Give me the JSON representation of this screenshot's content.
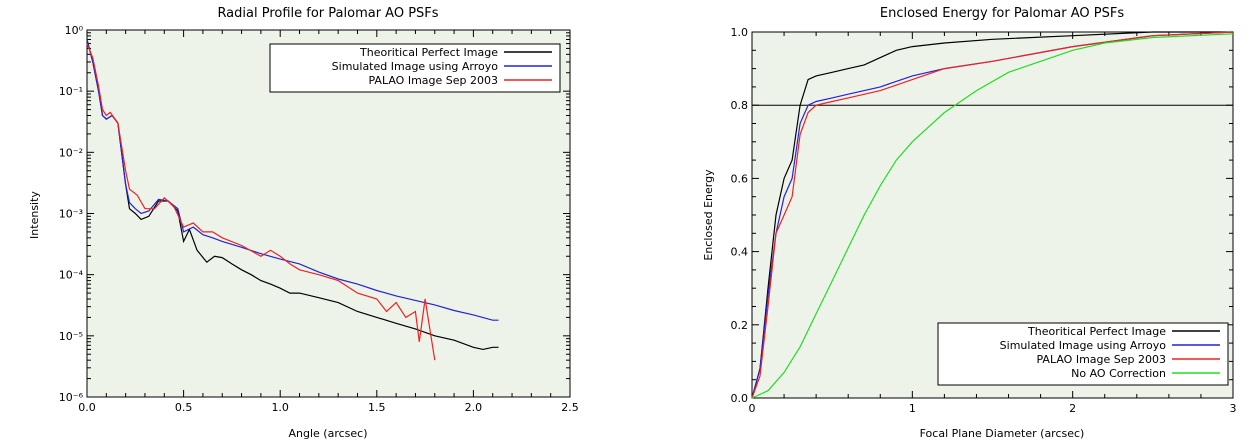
{
  "chart_data": [
    {
      "type": "line",
      "title": "Radial Profile for Palomar AO PSFs",
      "xlabel": "Angle (arcsec)",
      "ylabel": "Intensity",
      "xlim": [
        0,
        2.5
      ],
      "ylim": [
        1e-06,
        1
      ],
      "yscale": "log",
      "grid": false,
      "legend_position": "top-right",
      "xticks": [
        "0.0",
        "0.5",
        "1.0",
        "1.5",
        "2.0",
        "2.5"
      ],
      "yticks": [
        "10⁻⁶",
        "10⁻⁵",
        "10⁻⁴",
        "10⁻³",
        "10⁻²",
        "10⁻¹",
        "10⁰"
      ],
      "series": [
        {
          "name": "Theoritical Perfect Image",
          "color": "#000000",
          "x": [
            0,
            0.03,
            0.06,
            0.08,
            0.1,
            0.13,
            0.16,
            0.2,
            0.22,
            0.25,
            0.28,
            0.32,
            0.37,
            0.42,
            0.47,
            0.5,
            0.53,
            0.57,
            0.62,
            0.66,
            0.7,
            0.75,
            0.8,
            0.85,
            0.9,
            0.95,
            1.0,
            1.05,
            1.1,
            1.2,
            1.3,
            1.4,
            1.5,
            1.6,
            1.7,
            1.8,
            1.9,
            2.0,
            2.05,
            2.1,
            2.13
          ],
          "y": [
            0.7,
            0.3,
            0.1,
            0.04,
            0.035,
            0.04,
            0.03,
            0.003,
            0.0012,
            0.001,
            0.0008,
            0.0009,
            0.0016,
            0.0016,
            0.0011,
            0.00035,
            0.00055,
            0.00025,
            0.00016,
            0.0002,
            0.00019,
            0.00015,
            0.00012,
            0.0001,
            8e-05,
            7e-05,
            6e-05,
            5e-05,
            5e-05,
            4.2e-05,
            3.5e-05,
            2.5e-05,
            2e-05,
            1.6e-05,
            1.3e-05,
            1e-05,
            8.5e-06,
            6.5e-06,
            6e-06,
            6.5e-06,
            6.5e-06
          ]
        },
        {
          "name": "Simulated Image using Arroyo",
          "color": "#2222dd",
          "x": [
            0,
            0.03,
            0.06,
            0.08,
            0.1,
            0.13,
            0.16,
            0.2,
            0.22,
            0.25,
            0.28,
            0.32,
            0.37,
            0.42,
            0.47,
            0.5,
            0.55,
            0.6,
            0.65,
            0.7,
            0.8,
            0.9,
            1.0,
            1.1,
            1.2,
            1.3,
            1.4,
            1.5,
            1.6,
            1.7,
            1.8,
            1.9,
            2.0,
            2.1,
            2.13
          ],
          "y": [
            0.7,
            0.3,
            0.1,
            0.04,
            0.035,
            0.04,
            0.03,
            0.003,
            0.0015,
            0.0012,
            0.001,
            0.0011,
            0.0017,
            0.0016,
            0.0012,
            0.0005,
            0.0006,
            0.00045,
            0.0004,
            0.00035,
            0.00028,
            0.00022,
            0.00018,
            0.00015,
            0.00011,
            8.5e-05,
            7e-05,
            5.5e-05,
            4.5e-05,
            3.8e-05,
            3.2e-05,
            2.6e-05,
            2.2e-05,
            1.8e-05,
            1.8e-05
          ]
        },
        {
          "name": "PALAO Image Sep 2003",
          "color": "#ee2222",
          "x": [
            0,
            0.03,
            0.06,
            0.08,
            0.1,
            0.12,
            0.16,
            0.2,
            0.22,
            0.26,
            0.3,
            0.35,
            0.4,
            0.45,
            0.5,
            0.55,
            0.6,
            0.65,
            0.7,
            0.8,
            0.9,
            0.95,
            1.0,
            1.05,
            1.1,
            1.2,
            1.3,
            1.4,
            1.5,
            1.55,
            1.6,
            1.65,
            1.7,
            1.72,
            1.75,
            1.78,
            1.8
          ],
          "y": [
            0.6,
            0.35,
            0.12,
            0.05,
            0.04,
            0.045,
            0.03,
            0.005,
            0.0025,
            0.002,
            0.0012,
            0.0012,
            0.0018,
            0.0013,
            0.0006,
            0.0007,
            0.0005,
            0.0005,
            0.0004,
            0.0003,
            0.0002,
            0.00025,
            0.0002,
            0.00015,
            0.00012,
            0.0001,
            8e-05,
            5e-05,
            4e-05,
            2.5e-05,
            3.5e-05,
            2e-05,
            2.5e-05,
            8e-06,
            4e-05,
            1e-05,
            4e-06
          ]
        }
      ]
    },
    {
      "type": "line",
      "title": "Enclosed Energy for Palomar AO PSFs",
      "xlabel": "Focal Plane Diameter (arcsec)",
      "ylabel": "Enclosed Energy",
      "xlim": [
        0,
        3
      ],
      "ylim": [
        0,
        1
      ],
      "grid": false,
      "legend_position": "bottom-right",
      "reference_line_y": 0.8,
      "xticks": [
        "0",
        "1",
        "2",
        "3"
      ],
      "yticks": [
        "0.0",
        "0.2",
        "0.4",
        "0.6",
        "0.8",
        "1.0"
      ],
      "series": [
        {
          "name": "Theoritical Perfect Image",
          "color": "#000000",
          "x": [
            0,
            0.05,
            0.1,
            0.15,
            0.2,
            0.25,
            0.3,
            0.35,
            0.4,
            0.5,
            0.6,
            0.7,
            0.8,
            0.9,
            1.0,
            1.2,
            1.5,
            2.0,
            2.5,
            3.0
          ],
          "y": [
            0.0,
            0.08,
            0.3,
            0.5,
            0.6,
            0.65,
            0.8,
            0.87,
            0.88,
            0.89,
            0.9,
            0.91,
            0.93,
            0.95,
            0.96,
            0.97,
            0.98,
            0.99,
            1.0,
            1.0
          ]
        },
        {
          "name": "Simulated Image using Arroyo",
          "color": "#2222dd",
          "x": [
            0,
            0.05,
            0.1,
            0.15,
            0.2,
            0.25,
            0.3,
            0.35,
            0.4,
            0.5,
            0.6,
            0.8,
            1.0,
            1.2,
            1.5,
            2.0,
            2.5,
            3.0
          ],
          "y": [
            0.0,
            0.08,
            0.28,
            0.45,
            0.55,
            0.6,
            0.75,
            0.8,
            0.81,
            0.82,
            0.83,
            0.85,
            0.88,
            0.9,
            0.92,
            0.96,
            0.99,
            1.0
          ]
        },
        {
          "name": "PALAO Image Sep 2003",
          "color": "#ee2222",
          "x": [
            0,
            0.05,
            0.1,
            0.15,
            0.2,
            0.25,
            0.3,
            0.35,
            0.4,
            0.5,
            0.6,
            0.8,
            1.0,
            1.2,
            1.5,
            2.0,
            2.5,
            3.0
          ],
          "y": [
            0.0,
            0.06,
            0.25,
            0.45,
            0.5,
            0.55,
            0.72,
            0.78,
            0.8,
            0.81,
            0.82,
            0.84,
            0.87,
            0.9,
            0.92,
            0.96,
            0.99,
            1.0
          ]
        },
        {
          "name": "No AO Correction",
          "color": "#22dd22",
          "x": [
            0,
            0.1,
            0.2,
            0.3,
            0.4,
            0.5,
            0.6,
            0.7,
            0.8,
            0.9,
            1.0,
            1.2,
            1.4,
            1.6,
            1.8,
            2.0,
            2.2,
            2.5,
            3.0
          ],
          "y": [
            0.0,
            0.02,
            0.07,
            0.14,
            0.23,
            0.32,
            0.41,
            0.5,
            0.58,
            0.65,
            0.7,
            0.78,
            0.84,
            0.89,
            0.92,
            0.95,
            0.97,
            0.985,
            0.995
          ]
        }
      ]
    }
  ]
}
